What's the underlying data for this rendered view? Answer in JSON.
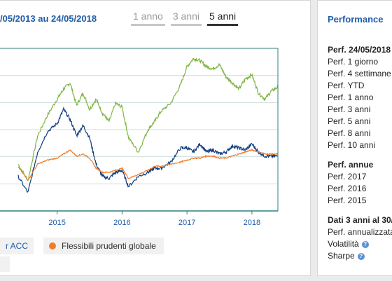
{
  "header": {
    "period_label": "/05/2013 au 24/05/2018",
    "tabs": [
      "1 anno",
      "3 anni",
      "5 anni"
    ],
    "active_tab": "5 anni"
  },
  "legend": {
    "series_a": "r ACC",
    "series_b": "Flessibili prudenti globale"
  },
  "colors": {
    "green": "#7cb442",
    "navy": "#103c7c",
    "orange": "#f07c2a",
    "title_blue": "#1f5ca8",
    "axis": "#2f7f7f"
  },
  "chart_data": {
    "type": "line",
    "x_ticks": [
      "2015",
      "2016",
      "2017",
      "2018"
    ],
    "series": [
      {
        "color": "#7cb442",
        "x": [
          2014.4,
          2014.55,
          2014.7,
          2014.85,
          2015.0,
          2015.1,
          2015.2,
          2015.3,
          2015.4,
          2015.5,
          2015.6,
          2015.7,
          2015.8,
          2015.9,
          2016.0,
          2016.1,
          2016.25,
          2016.4,
          2016.5,
          2016.6,
          2016.75,
          2016.9,
          2017.0,
          2017.1,
          2017.2,
          2017.3,
          2017.4,
          2017.5,
          2017.6,
          2017.7,
          2017.8,
          2017.9,
          2018.0,
          2018.1,
          2018.2,
          2018.3,
          2018.4
        ],
        "y": [
          -2,
          -10,
          12,
          22,
          30,
          35,
          38,
          27,
          33,
          25,
          30,
          23,
          19,
          28,
          26,
          11,
          4,
          15,
          19,
          24,
          28,
          37,
          46,
          50,
          49,
          46,
          45,
          47,
          41,
          38,
          35,
          40,
          42,
          33,
          30,
          34,
          36
        ]
      },
      {
        "color": "#103c7c",
        "x": [
          2014.4,
          2014.55,
          2014.7,
          2014.85,
          2015.0,
          2015.1,
          2015.2,
          2015.3,
          2015.4,
          2015.5,
          2015.6,
          2015.7,
          2015.8,
          2015.9,
          2016.0,
          2016.1,
          2016.25,
          2016.4,
          2016.5,
          2016.6,
          2016.75,
          2016.9,
          2017.0,
          2017.1,
          2017.2,
          2017.3,
          2017.4,
          2017.5,
          2017.6,
          2017.7,
          2017.8,
          2017.9,
          2018.0,
          2018.1,
          2018.2,
          2018.3,
          2018.4
        ],
        "y": [
          -8,
          -16,
          4,
          14,
          18,
          25,
          20,
          12,
          17,
          11,
          -2,
          -8,
          -9,
          -6,
          -5,
          -13,
          -8,
          -6,
          -4,
          -4,
          -1,
          6,
          6,
          4,
          8,
          4,
          5,
          3,
          4,
          7,
          6,
          5,
          8,
          4,
          2,
          2,
          2
        ]
      },
      {
        "color": "#f07c2a",
        "x": [
          2014.4,
          2014.55,
          2014.7,
          2014.85,
          2015.0,
          2015.1,
          2015.2,
          2015.3,
          2015.4,
          2015.5,
          2015.6,
          2015.7,
          2015.8,
          2015.9,
          2016.0,
          2016.1,
          2016.25,
          2016.4,
          2016.5,
          2016.6,
          2016.75,
          2016.9,
          2017.0,
          2017.1,
          2017.2,
          2017.3,
          2017.4,
          2017.5,
          2017.6,
          2017.7,
          2017.8,
          2017.9,
          2018.0,
          2018.1,
          2018.2,
          2018.3,
          2018.4
        ],
        "y": [
          -3,
          -10,
          -2,
          0,
          1,
          3,
          5,
          2,
          3,
          1,
          -4,
          -6,
          -6,
          -5,
          -4,
          -9,
          -7,
          -5,
          -3,
          -3,
          -2,
          -1,
          0,
          1,
          1,
          2,
          2,
          1,
          1,
          2,
          3,
          4,
          5,
          4,
          3,
          3,
          3
        ]
      }
    ],
    "grid": true
  },
  "performance": {
    "title": "Performance",
    "section1": {
      "heading": "Perf. 24/05/2018",
      "rows": [
        "Perf. 1 giorno",
        "Perf. 4 settimane",
        "Perf. YTD",
        "Perf. 1 anno",
        "Perf. 3 anni",
        "Perf. 5 anni",
        "Perf. 8 anni",
        "Perf. 10 anni"
      ]
    },
    "section2": {
      "heading": "Perf. annue",
      "rows": [
        "Perf. 2017",
        "Perf. 2016",
        "Perf. 2015"
      ]
    },
    "section3": {
      "heading": "Dati 3 anni al 30/",
      "rows": [
        "Perf. annualizzata",
        "Volatilità",
        "Sharpe"
      ]
    }
  }
}
